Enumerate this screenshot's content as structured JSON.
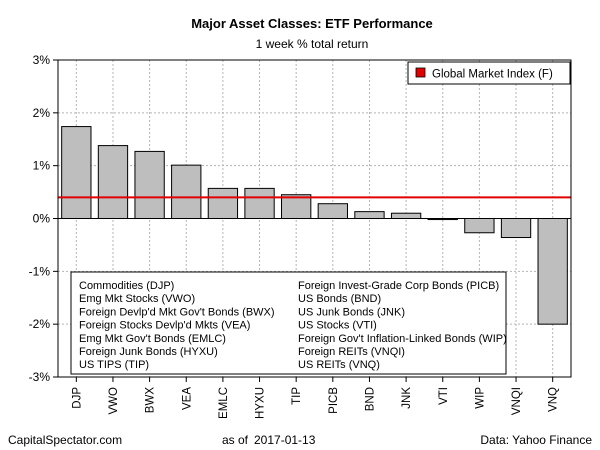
{
  "chart_data": {
    "type": "bar",
    "title": "Major Asset Classes: ETF Performance",
    "subtitle": "1 week % total return",
    "ylim": [
      -3,
      3
    ],
    "yticks": [
      -3,
      -2,
      -1,
      0,
      1,
      2,
      3
    ],
    "ytick_labels": [
      "-3%",
      "-2%",
      "-1%",
      "0%",
      "1%",
      "2%",
      "3%"
    ],
    "grid": true,
    "categories": [
      "DJP",
      "VWO",
      "BWX",
      "VEA",
      "EMLC",
      "HYXU",
      "TIP",
      "PICB",
      "BND",
      "JNK",
      "VTI",
      "WIP",
      "VNQI",
      "VNQ"
    ],
    "values": [
      1.74,
      1.38,
      1.27,
      1.01,
      0.57,
      0.57,
      0.45,
      0.28,
      0.13,
      0.1,
      -0.02,
      -0.27,
      -0.36,
      -2.0
    ],
    "bar_color": "#bebebe",
    "reference_line": {
      "label": "Global Market Index (F)",
      "value": 0.4,
      "color": "#e00000",
      "legend_position": "top-right"
    },
    "description_legend": {
      "left": [
        "Commodities (DJP)",
        "Emg Mkt Stocks (VWO)",
        "Foreign Devlp'd Mkt Gov't Bonds (BWX)",
        "Foreign Stocks Devlp'd Mkts (VEA)",
        "Emg Mkt Gov't Bonds (EMLC)",
        "Foreign Junk Bonds (HYXU)",
        "US TIPS (TIP)"
      ],
      "right": [
        "Foreign Invest-Grade Corp Bonds (PICB)",
        "US Bonds (BND)",
        "US Junk Bonds (JNK)",
        "US Stocks (VTI)",
        "Foreign Gov't Inflation-Linked Bonds (WIP)",
        "Foreign REITs (VNQI)",
        "US REITs (VNQ)"
      ]
    }
  },
  "footer": {
    "source_left": "CapitalSpectator.com",
    "as_of_label": "as of",
    "date": "2017-01-13",
    "source_right": "Data: Yahoo Finance"
  }
}
